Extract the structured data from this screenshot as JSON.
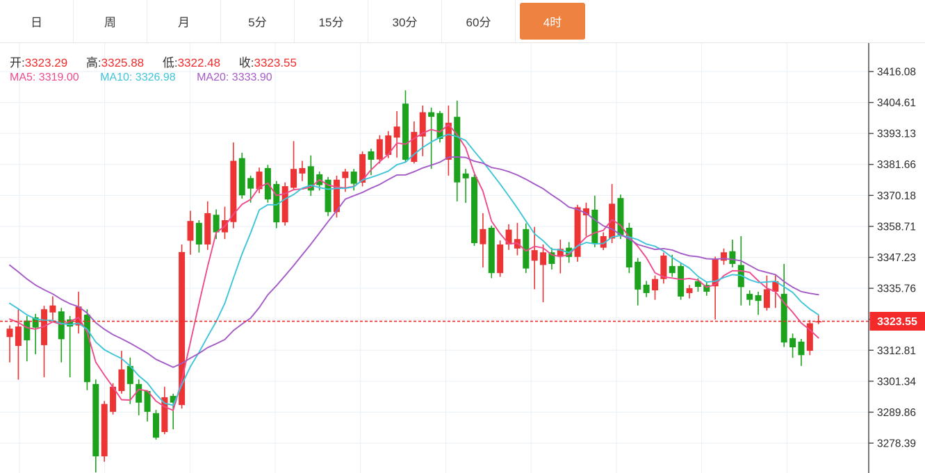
{
  "tabs": {
    "items": [
      {
        "label": "日"
      },
      {
        "label": "周"
      },
      {
        "label": "月"
      },
      {
        "label": "5分"
      },
      {
        "label": "15分"
      },
      {
        "label": "30分"
      },
      {
        "label": "60分"
      },
      {
        "label": "4时"
      }
    ],
    "active_index": 7,
    "active_bg": "#ee8240"
  },
  "legend": {
    "open_label": "开:",
    "open": "3323.29",
    "high_label": "高:",
    "high": "3325.88",
    "low_label": "低:",
    "low": "3322.48",
    "close_label": "收:",
    "close": "3323.55",
    "ma5_label": "MA5:",
    "ma5": "3319.00",
    "ma10_label": "MA10:",
    "ma10": "3326.98",
    "ma20_label": "MA20:",
    "ma20": "3333.90"
  },
  "colors": {
    "up_candle": "#ec3434",
    "down_candle": "#1ca21c",
    "ma5": "#ee4a8c",
    "ma10": "#3ec4d9",
    "ma20": "#a45ac6",
    "value_red": "#ee2c2c",
    "price_line": "#ef2b23",
    "price_label_bg": "#f42a2a",
    "gridline": "#e9eff5",
    "axis_line": "#53565c",
    "axis_text": "#2b2b2b",
    "tab_text": "#3a3a3a"
  },
  "price_axis": {
    "tick_labels": [
      "3416.08",
      "3404.61",
      "3393.13",
      "3381.66",
      "3370.18",
      "3358.71",
      "3347.23",
      "3335.76",
      "3324.28",
      "3312.81",
      "3301.34",
      "3289.86",
      "3278.39"
    ],
    "current_price_label": "3323.55"
  },
  "chart_data": {
    "type": "candlestick",
    "timeframe": "4时",
    "grid": true,
    "legend_position": "top-left",
    "y_ticks": [
      3416.08,
      3404.61,
      3393.13,
      3381.66,
      3370.18,
      3358.71,
      3347.23,
      3335.76,
      3324.28,
      3312.81,
      3301.34,
      3289.86,
      3278.39
    ],
    "tick_step": 11.4742,
    "price_top_gridline": 3416.08,
    "visible_price_range": [
      3267.3,
      3426.6
    ],
    "current_price": 3323.55,
    "ohlc_current": {
      "open": 3323.29,
      "high": 3325.88,
      "low": 3322.48,
      "close": 3323.55
    },
    "ma_values_current": {
      "ma5": 3319.0,
      "ma10": 3326.98,
      "ma20": 3333.9
    },
    "ma_periods": [
      5,
      10,
      20
    ],
    "ma_seed_closes": [
      3372,
      3369,
      3366,
      3363,
      3360,
      3357,
      3354,
      3351,
      3348,
      3345,
      3342,
      3339,
      3336,
      3333,
      3330,
      3328,
      3326,
      3324,
      3323
    ],
    "candles": [
      [
        3317.7,
        3322.0,
        3308.3,
        3320.8
      ],
      [
        3314.4,
        3328.0,
        3301.9,
        3321.6
      ],
      [
        3323.8,
        3325.5,
        3308.7,
        3316.5
      ],
      [
        3325.0,
        3326.3,
        3311.3,
        3321.2
      ],
      [
        3314.7,
        3329.3,
        3302.8,
        3328.0
      ],
      [
        3326.8,
        3332.8,
        3324.0,
        3329.4
      ],
      [
        3327.2,
        3328.5,
        3308.3,
        3316.9
      ],
      [
        3324.2,
        3325.5,
        3302.8,
        3321.6
      ],
      [
        3322.0,
        3334.5,
        3319.0,
        3329.0
      ],
      [
        3326.0,
        3328.0,
        3298.0,
        3301.0
      ],
      [
        3300.3,
        3302.0,
        3267.5,
        3273.5
      ],
      [
        3273.5,
        3294.0,
        3271.5,
        3292.9
      ],
      [
        3290.0,
        3300.6,
        3289.0,
        3299.3
      ],
      [
        3297.7,
        3312.6,
        3296.7,
        3305.7
      ],
      [
        3307.0,
        3310.1,
        3292.9,
        3300.3
      ],
      [
        3300.3,
        3302.0,
        3288.7,
        3293.4
      ],
      [
        3297.7,
        3298.0,
        3286.4,
        3290.0
      ],
      [
        3289.5,
        3290.7,
        3279.7,
        3280.4
      ],
      [
        3282.5,
        3299.3,
        3281.7,
        3295.4
      ],
      [
        3295.9,
        3296.7,
        3283.5,
        3293.4
      ],
      [
        3292.5,
        3352.0,
        3291.2,
        3349.2
      ],
      [
        3353.4,
        3364.5,
        3348.2,
        3360.7
      ],
      [
        3360.0,
        3361.0,
        3349.0,
        3352.0
      ],
      [
        3352.0,
        3368.0,
        3350.0,
        3363.6
      ],
      [
        3363.0,
        3365.0,
        3354.0,
        3356.5
      ],
      [
        3356.5,
        3366.0,
        3354.0,
        3361.0
      ],
      [
        3360.3,
        3389.8,
        3358.0,
        3383.0
      ],
      [
        3384.0,
        3386.0,
        3369.0,
        3370.2
      ],
      [
        3376.6,
        3377.5,
        3367.5,
        3372.7
      ],
      [
        3372.5,
        3380.5,
        3371.0,
        3379.0
      ],
      [
        3380.3,
        3381.5,
        3367.5,
        3368.7
      ],
      [
        3374.4,
        3375.5,
        3358.0,
        3360.2
      ],
      [
        3360.2,
        3375.0,
        3359.0,
        3373.6
      ],
      [
        3373.0,
        3390.3,
        3372.0,
        3380.0
      ],
      [
        3378.3,
        3383.0,
        3375.5,
        3380.3
      ],
      [
        3381.0,
        3385.0,
        3370.0,
        3372.0
      ],
      [
        3378.0,
        3379.0,
        3372.0,
        3374.0
      ],
      [
        3376.0,
        3377.0,
        3362.5,
        3364.0
      ],
      [
        3364.0,
        3377.5,
        3362.0,
        3376.0
      ],
      [
        3376.6,
        3380.0,
        3371.5,
        3379.0
      ],
      [
        3379.0,
        3380.0,
        3372.0,
        3374.5
      ],
      [
        3374.9,
        3386.5,
        3373.5,
        3385.5
      ],
      [
        3386.5,
        3387.5,
        3377.7,
        3383.4
      ],
      [
        3383.5,
        3392.5,
        3382.0,
        3391.0
      ],
      [
        3385.2,
        3394.0,
        3384.0,
        3392.4
      ],
      [
        3391.6,
        3401.4,
        3384.2,
        3395.7
      ],
      [
        3404.2,
        3409.1,
        3382.5,
        3383.4
      ],
      [
        3382.6,
        3397.6,
        3382.0,
        3393.7
      ],
      [
        3392.0,
        3403.5,
        3384.7,
        3401.0
      ],
      [
        3401.0,
        3402.7,
        3380.0,
        3399.3
      ],
      [
        3400.7,
        3401.5,
        3389.8,
        3391.1
      ],
      [
        3383.4,
        3403.5,
        3377.5,
        3397.1
      ],
      [
        3399.3,
        3405.3,
        3368.0,
        3375.0
      ],
      [
        3378.3,
        3380.0,
        3367.4,
        3376.5
      ],
      [
        3377.0,
        3378.0,
        3351.5,
        3352.5
      ],
      [
        3352.1,
        3363.6,
        3343.5,
        3357.7
      ],
      [
        3358.2,
        3359.0,
        3339.5,
        3341.4
      ],
      [
        3341.4,
        3353.5,
        3340.0,
        3352.0
      ],
      [
        3352.0,
        3359.5,
        3350.0,
        3357.5
      ],
      [
        3350.5,
        3360.0,
        3348.0,
        3354.0
      ],
      [
        3357.7,
        3359.8,
        3341.4,
        3343.1
      ],
      [
        3346.0,
        3358.5,
        3335.4,
        3349.9
      ],
      [
        3344.4,
        3352.0,
        3330.6,
        3349.1
      ],
      [
        3349.1,
        3350.8,
        3342.7,
        3344.8
      ],
      [
        3347.8,
        3353.8,
        3341.3,
        3350.4
      ],
      [
        3350.8,
        3352.9,
        3345.2,
        3347.4
      ],
      [
        3347.4,
        3366.7,
        3345.6,
        3365.8
      ],
      [
        3362.8,
        3367.5,
        3355.1,
        3365.4
      ],
      [
        3364.9,
        3370.1,
        3351.0,
        3352.5
      ],
      [
        3350.8,
        3356.5,
        3349.9,
        3355.1
      ],
      [
        3354.2,
        3374.4,
        3352.5,
        3367.1
      ],
      [
        3369.2,
        3370.5,
        3354.0,
        3355.5
      ],
      [
        3358.2,
        3360.0,
        3341.4,
        3343.5
      ],
      [
        3345.6,
        3347.0,
        3329.4,
        3335.3
      ],
      [
        3337.1,
        3338.5,
        3332.5,
        3334.0
      ],
      [
        3335.0,
        3340.5,
        3331.5,
        3339.2
      ],
      [
        3339.2,
        3349.0,
        3337.5,
        3347.9
      ],
      [
        3344.0,
        3348.2,
        3340.0,
        3341.4
      ],
      [
        3344.0,
        3345.0,
        3331.5,
        3332.7
      ],
      [
        3334.0,
        3337.0,
        3332.0,
        3335.8
      ],
      [
        3338.4,
        3339.5,
        3334.5,
        3336.3
      ],
      [
        3337.0,
        3338.0,
        3333.0,
        3334.5
      ],
      [
        3336.5,
        3347.5,
        3324.2,
        3346.6
      ],
      [
        3346.0,
        3350.5,
        3344.5,
        3349.1
      ],
      [
        3349.5,
        3353.8,
        3343.5,
        3344.8
      ],
      [
        3344.4,
        3355.1,
        3329.4,
        3336.2
      ],
      [
        3333.7,
        3335.0,
        3329.4,
        3331.5
      ],
      [
        3333.2,
        3334.5,
        3325.9,
        3331.1
      ],
      [
        3328.5,
        3340.5,
        3327.5,
        3335.4
      ],
      [
        3334.5,
        3340.5,
        3328.5,
        3338.4
      ],
      [
        3333.7,
        3344.8,
        3314.0,
        3315.7
      ],
      [
        3317.3,
        3319.0,
        3310.0,
        3313.9
      ],
      [
        3316.0,
        3317.0,
        3307.0,
        3311.0
      ],
      [
        3312.6,
        3324.0,
        3311.0,
        3322.8
      ],
      [
        3323.29,
        3325.88,
        3322.48,
        3323.55
      ]
    ]
  }
}
